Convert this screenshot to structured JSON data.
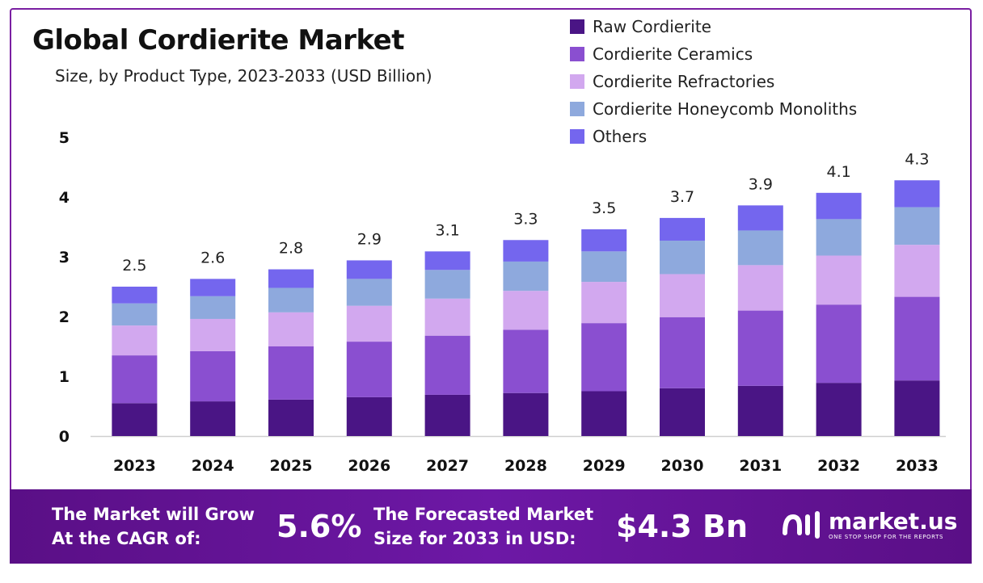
{
  "header": {
    "title": "Global Cordierite Market",
    "subtitle": "Size, by Product Type, 2023-2033 (USD Billion)"
  },
  "legend": [
    {
      "label": "Raw Cordierite",
      "color": "#4a1585"
    },
    {
      "label": "Cordierite Ceramics",
      "color": "#8a4fd0"
    },
    {
      "label": "Cordierite Refractories",
      "color": "#d2a8ef"
    },
    {
      "label": "Cordierite Honeycomb Monoliths",
      "color": "#8ea9dd"
    },
    {
      "label": "Others",
      "color": "#7466ee"
    }
  ],
  "chart_data": {
    "type": "bar",
    "stacked": true,
    "categories": [
      "2023",
      "2024",
      "2025",
      "2026",
      "2027",
      "2028",
      "2029",
      "2030",
      "2031",
      "2032",
      "2033"
    ],
    "series": [
      {
        "name": "Raw Cordierite",
        "color": "#4a1585",
        "values": [
          0.55,
          0.58,
          0.61,
          0.65,
          0.69,
          0.72,
          0.75,
          0.8,
          0.84,
          0.89,
          0.93
        ]
      },
      {
        "name": "Cordierite Ceramics",
        "color": "#8a4fd0",
        "values": [
          0.8,
          0.84,
          0.89,
          0.93,
          0.99,
          1.06,
          1.14,
          1.19,
          1.26,
          1.31,
          1.4
        ]
      },
      {
        "name": "Cordierite Refractories",
        "color": "#d2a8ef",
        "values": [
          0.5,
          0.54,
          0.57,
          0.6,
          0.62,
          0.65,
          0.69,
          0.72,
          0.76,
          0.82,
          0.87
        ]
      },
      {
        "name": "Cordierite Honeycomb Monoliths",
        "color": "#8ea9dd",
        "values": [
          0.37,
          0.38,
          0.41,
          0.45,
          0.48,
          0.49,
          0.51,
          0.56,
          0.58,
          0.61,
          0.63
        ]
      },
      {
        "name": "Others",
        "color": "#7466ee",
        "values": [
          0.28,
          0.29,
          0.31,
          0.31,
          0.31,
          0.36,
          0.37,
          0.38,
          0.42,
          0.44,
          0.45
        ]
      }
    ],
    "totals": [
      "2.5",
      "2.6",
      "2.8",
      "2.9",
      "3.1",
      "3.3",
      "3.5",
      "3.7",
      "3.9",
      "4.1",
      "4.3"
    ],
    "yticks": [
      "0",
      "1",
      "2",
      "3",
      "4",
      "5"
    ],
    "ylim": [
      0,
      5
    ],
    "grid": false,
    "legend_position": "top-right"
  },
  "footer": {
    "cagr_line1": "The Market will Grow",
    "cagr_line2": "At the CAGR of:",
    "cagr_value": "5.6%",
    "forecast_line1": "The Forecasted Market",
    "forecast_line2": "Size for 2033 in USD:",
    "forecast_value": "$4.3 Bn",
    "brand_name": "market.us",
    "brand_tagline": "ONE STOP SHOP FOR THE REPORTS"
  }
}
